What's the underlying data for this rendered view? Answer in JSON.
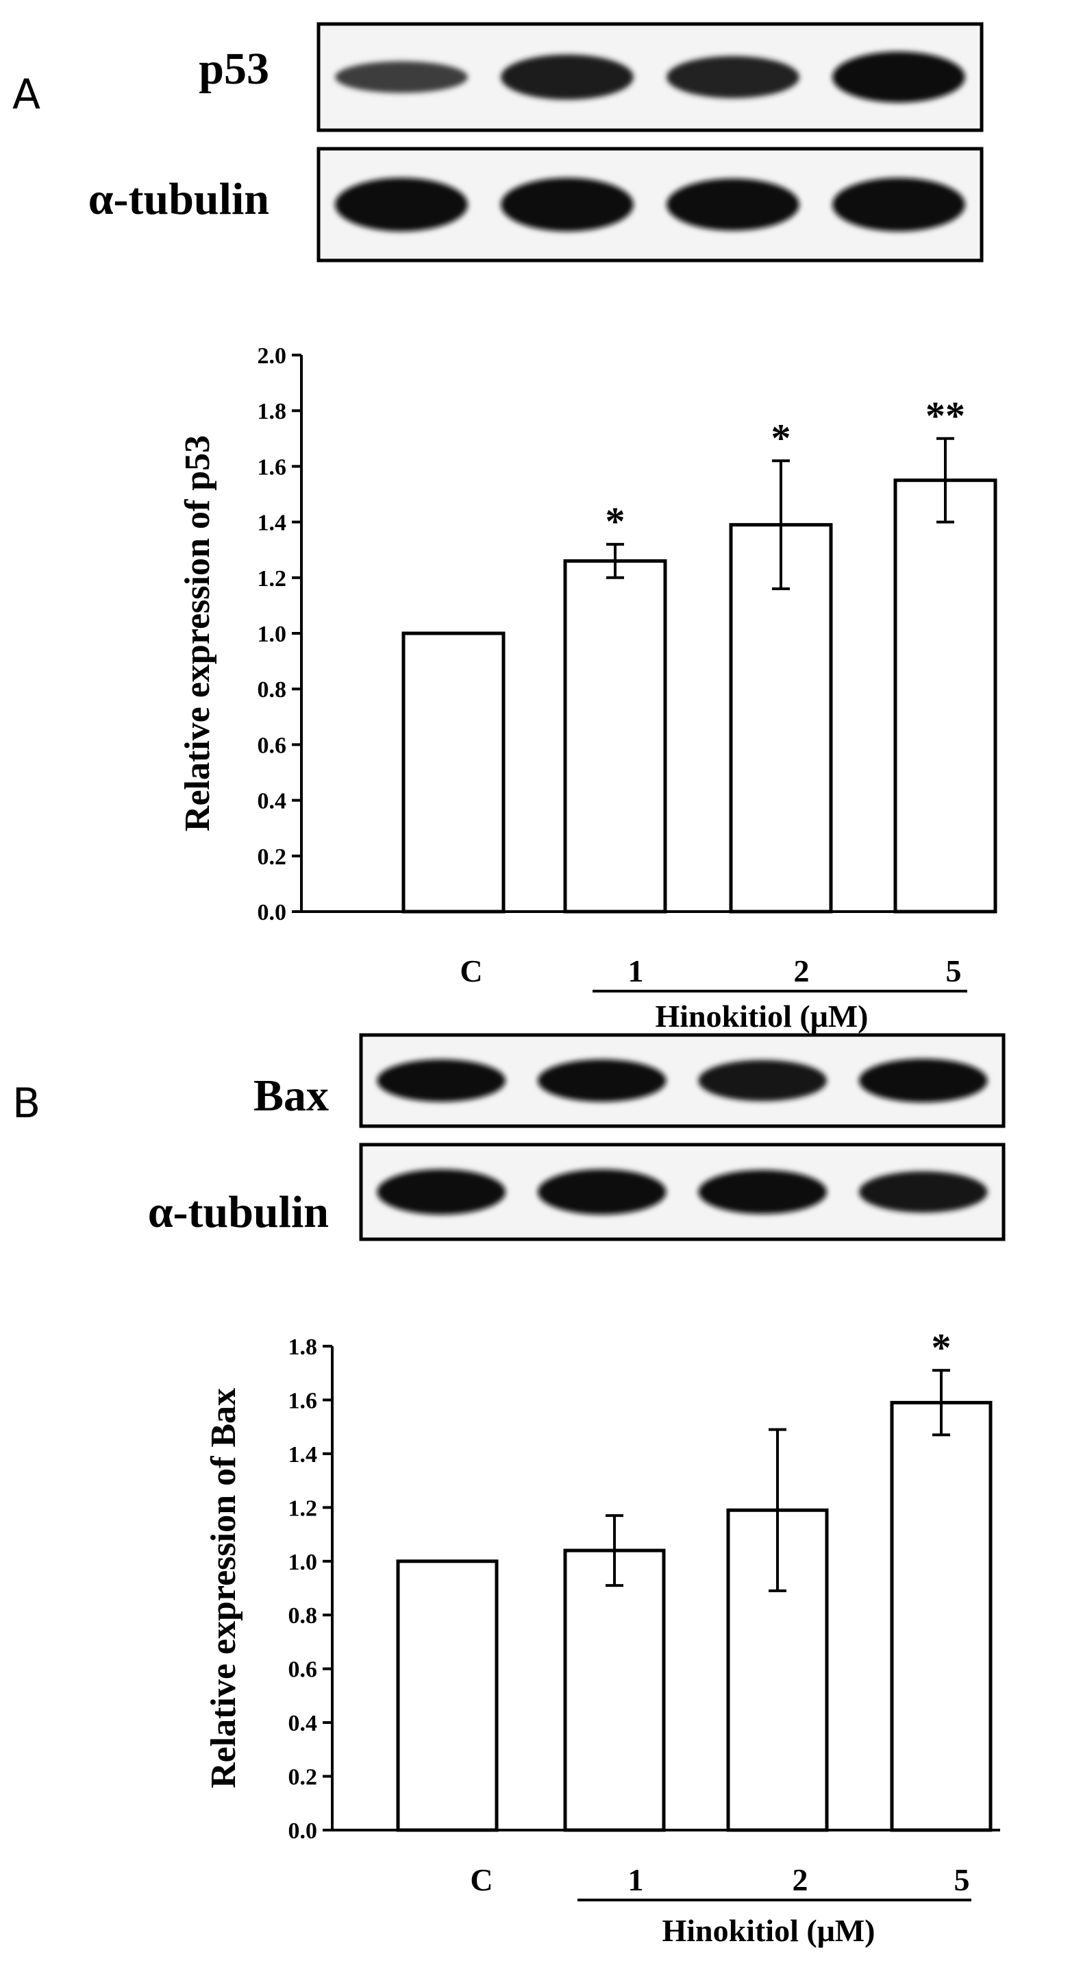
{
  "panels": [
    {
      "panel_label": "A",
      "blot_rows": [
        {
          "label": "p53",
          "lanes": 4,
          "band_intensity": [
            0.35,
            0.8,
            0.7,
            1.0
          ]
        },
        {
          "label": "α-tubulin",
          "lanes": 4,
          "band_intensity": [
            1.0,
            1.0,
            0.95,
            1.0
          ]
        }
      ]
    },
    {
      "panel_label": "B",
      "blot_rows": [
        {
          "label": "Bax",
          "lanes": 4,
          "band_intensity": [
            0.95,
            0.95,
            0.9,
            1.0
          ]
        },
        {
          "label": "α-tubulin",
          "lanes": 4,
          "band_intensity": [
            1.0,
            1.0,
            0.95,
            0.85
          ]
        }
      ]
    }
  ],
  "chart_data": [
    {
      "type": "bar",
      "title": "",
      "xlabel": "Hinokitiol (μM)",
      "ylabel": "Relative expression of p53",
      "categories": [
        "C",
        "1",
        "2",
        "5"
      ],
      "values": [
        1.0,
        1.26,
        1.39,
        1.55
      ],
      "errors": [
        0.0,
        0.06,
        0.23,
        0.15
      ],
      "significance": [
        "",
        "*",
        "*",
        "**"
      ],
      "ylim": [
        0,
        2.0
      ],
      "yticks": [
        "0.0",
        "0.2",
        "0.4",
        "0.6",
        "0.8",
        "1.0",
        "1.2",
        "1.4",
        "1.6",
        "1.8",
        "2.0"
      ],
      "grid": false,
      "bar_fill": "#ffffff",
      "bar_stroke": "#000000"
    },
    {
      "type": "bar",
      "title": "",
      "xlabel": "Hinokitiol (μM)",
      "ylabel": "Relative expression of Bax",
      "categories": [
        "C",
        "1",
        "2",
        "5"
      ],
      "values": [
        1.0,
        1.04,
        1.19,
        1.59
      ],
      "errors": [
        0.0,
        0.13,
        0.3,
        0.12
      ],
      "significance": [
        "",
        "",
        "",
        "*"
      ],
      "ylim": [
        0,
        1.8
      ],
      "yticks": [
        "0.0",
        "0.2",
        "0.4",
        "0.6",
        "0.8",
        "1.0",
        "1.2",
        "1.4",
        "1.6",
        "1.8"
      ],
      "grid": false,
      "bar_fill": "#ffffff",
      "bar_stroke": "#000000"
    }
  ]
}
